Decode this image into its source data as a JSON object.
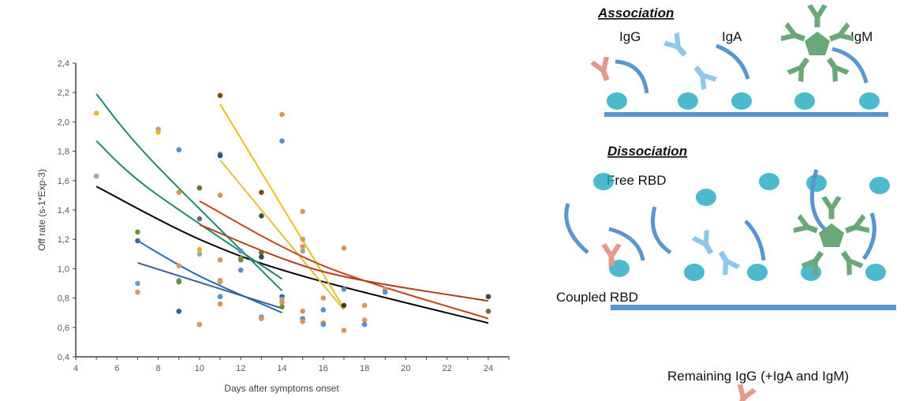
{
  "chart_data": {
    "type": "scatter",
    "xlabel": "Days after symptoms onset",
    "ylabel": "Off rate (s-1*Exp-3)",
    "xlim": [
      4,
      25
    ],
    "ylim": [
      0.4,
      2.4
    ],
    "xticks": [
      "4",
      "6",
      "8",
      "10",
      "12",
      "14",
      "16",
      "18",
      "20",
      "22",
      "24"
    ],
    "yticks": [
      "0,4",
      "0,6",
      "0,8",
      "1,0",
      "1,2",
      "1,4",
      "1,6",
      "1,8",
      "2,0",
      "2,2",
      "2,4"
    ],
    "grid": false,
    "points": [
      {
        "x": 5,
        "y": 2.06,
        "color": "#f0b323"
      },
      {
        "x": 5,
        "y": 1.63,
        "color": "#a5a5a5"
      },
      {
        "x": 7,
        "y": 1.25,
        "color": "#6b8e3a"
      },
      {
        "x": 7,
        "y": 1.19,
        "color": "#3b6aa8"
      },
      {
        "x": 7,
        "y": 0.9,
        "color": "#6b9bd1"
      },
      {
        "x": 7,
        "y": 0.84,
        "color": "#d9975a"
      },
      {
        "x": 8,
        "y": 1.95,
        "color": "#a5a5a5"
      },
      {
        "x": 8,
        "y": 1.93,
        "color": "#f0b323"
      },
      {
        "x": 9,
        "y": 1.81,
        "color": "#5b8fc7"
      },
      {
        "x": 9,
        "y": 1.52,
        "color": "#d9975a"
      },
      {
        "x": 9,
        "y": 1.02,
        "color": "#d9975a"
      },
      {
        "x": 9,
        "y": 0.92,
        "color": "#6b9bd1"
      },
      {
        "x": 9,
        "y": 0.91,
        "color": "#6b8e3a"
      },
      {
        "x": 9,
        "y": 0.71,
        "color": "#3b5f9a"
      },
      {
        "x": 10,
        "y": 1.55,
        "color": "#7a6a2a"
      },
      {
        "x": 10,
        "y": 1.34,
        "color": "#6a6a80"
      },
      {
        "x": 10,
        "y": 1.13,
        "color": "#f0b323"
      },
      {
        "x": 10,
        "y": 1.1,
        "color": "#a5a5a5"
      },
      {
        "x": 10,
        "y": 0.62,
        "color": "#d9975a"
      },
      {
        "x": 11,
        "y": 2.18,
        "color": "#7a4a1f"
      },
      {
        "x": 11,
        "y": 1.78,
        "color": "#5b8fc7"
      },
      {
        "x": 11,
        "y": 1.77,
        "color": "#2f4f6f"
      },
      {
        "x": 11,
        "y": 1.5,
        "color": "#d9975a"
      },
      {
        "x": 11,
        "y": 1.06,
        "color": "#d9975a"
      },
      {
        "x": 11,
        "y": 0.92,
        "color": "#d9975a"
      },
      {
        "x": 11,
        "y": 0.91,
        "color": "#c8a060"
      },
      {
        "x": 11,
        "y": 0.81,
        "color": "#5b8fc7"
      },
      {
        "x": 11,
        "y": 0.76,
        "color": "#d9975a"
      },
      {
        "x": 12,
        "y": 1.12,
        "color": "#5b8fc7"
      },
      {
        "x": 12,
        "y": 1.07,
        "color": "#a08a40"
      },
      {
        "x": 12,
        "y": 1.06,
        "color": "#6b8e3a"
      },
      {
        "x": 12,
        "y": 0.99,
        "color": "#5b8fc7"
      },
      {
        "x": 13,
        "y": 1.52,
        "color": "#7a4a1f"
      },
      {
        "x": 13,
        "y": 1.36,
        "color": "#2f5a3a"
      },
      {
        "x": 13,
        "y": 1.11,
        "color": "#7a6a2a"
      },
      {
        "x": 13,
        "y": 1.08,
        "color": "#3a4a5a"
      },
      {
        "x": 13,
        "y": 0.67,
        "color": "#5b8fc7"
      },
      {
        "x": 13,
        "y": 0.66,
        "color": "#d9975a"
      },
      {
        "x": 14,
        "y": 2.05,
        "color": "#d9975a"
      },
      {
        "x": 14,
        "y": 1.87,
        "color": "#5b8fc7"
      },
      {
        "x": 14,
        "y": 0.81,
        "color": "#3b5f9a"
      },
      {
        "x": 14,
        "y": 0.79,
        "color": "#a5a5a5"
      },
      {
        "x": 14,
        "y": 0.77,
        "color": "#d9975a"
      },
      {
        "x": 14,
        "y": 0.74,
        "color": "#6b8e3a"
      },
      {
        "x": 15,
        "y": 1.39,
        "color": "#d9975a"
      },
      {
        "x": 15,
        "y": 1.2,
        "color": "#d9975a"
      },
      {
        "x": 15,
        "y": 1.15,
        "color": "#d9975a"
      },
      {
        "x": 15,
        "y": 1.12,
        "color": "#a5a5a5"
      },
      {
        "x": 15,
        "y": 0.71,
        "color": "#d9975a"
      },
      {
        "x": 15,
        "y": 0.66,
        "color": "#5b8fc7"
      },
      {
        "x": 15,
        "y": 0.64,
        "color": "#d9975a"
      },
      {
        "x": 16,
        "y": 0.8,
        "color": "#d9975a"
      },
      {
        "x": 16,
        "y": 0.72,
        "color": "#5b8fc7"
      },
      {
        "x": 16,
        "y": 0.63,
        "color": "#d9975a"
      },
      {
        "x": 16,
        "y": 0.62,
        "color": "#5b8fc7"
      },
      {
        "x": 17,
        "y": 1.14,
        "color": "#d9975a"
      },
      {
        "x": 17,
        "y": 0.86,
        "color": "#5b8fc7"
      },
      {
        "x": 17,
        "y": 0.75,
        "color": "#3a3a2a"
      },
      {
        "x": 17,
        "y": 0.58,
        "color": "#d9975a"
      },
      {
        "x": 18,
        "y": 0.75,
        "color": "#d9975a"
      },
      {
        "x": 18,
        "y": 0.65,
        "color": "#d9975a"
      },
      {
        "x": 18,
        "y": 0.62,
        "color": "#5b8fc7"
      },
      {
        "x": 19,
        "y": 0.86,
        "color": "#d9975a"
      },
      {
        "x": 19,
        "y": 0.84,
        "color": "#5b8fc7"
      },
      {
        "x": 24,
        "y": 0.81,
        "color": "#3a4a5a"
      },
      {
        "x": 24,
        "y": 0.71,
        "color": "#7a6a2a"
      }
    ],
    "fit_lines": [
      {
        "color": "#000000",
        "points": [
          [
            5,
            1.56
          ],
          [
            10,
            1.2
          ],
          [
            15,
            0.95
          ],
          [
            24,
            0.63
          ]
        ]
      },
      {
        "color": "#1f8a6a",
        "points": [
          [
            5,
            2.19
          ],
          [
            7.6,
            1.75
          ],
          [
            14,
            0.85
          ]
        ]
      },
      {
        "color": "#1f8a6a",
        "points": [
          [
            5,
            1.87
          ],
          [
            7.6,
            1.54
          ],
          [
            14,
            0.93
          ]
        ]
      },
      {
        "color": "#1f6fb5",
        "points": [
          [
            7,
            1.19
          ],
          [
            10,
            0.95
          ],
          [
            14,
            0.7
          ]
        ]
      },
      {
        "color": "#3f5f8f",
        "points": [
          [
            7,
            1.04
          ],
          [
            14,
            0.73
          ]
        ]
      },
      {
        "color": "#e8c020",
        "points": [
          [
            11,
            2.12
          ],
          [
            17,
            0.73
          ]
        ]
      },
      {
        "color": "#e0c040",
        "points": [
          [
            11,
            1.74
          ],
          [
            17,
            0.72
          ]
        ]
      },
      {
        "color": "#c0461c",
        "points": [
          [
            10,
            1.46
          ],
          [
            16,
            1.02
          ],
          [
            24,
            0.66
          ]
        ]
      },
      {
        "color": "#b0401c",
        "points": [
          [
            10,
            1.3
          ],
          [
            16,
            0.98
          ],
          [
            24,
            0.78
          ]
        ]
      }
    ]
  },
  "diagram": {
    "association_title": "Association",
    "dissociation_title": "Dissociation",
    "igg": "IgG",
    "iga": "IgA",
    "igm": "IgM",
    "free_rbd": "Free RBD",
    "coupled_rbd": "Coupled RBD",
    "remaining": "Remaining IgG (+IgA and IgM)",
    "colors": {
      "igg": "#e8978c",
      "iga": "#8cc8ec",
      "igm": "#6aa878",
      "surface": "#5b95d0",
      "arrow": "#5b95d0",
      "rbd": "#1fa8c0"
    }
  }
}
